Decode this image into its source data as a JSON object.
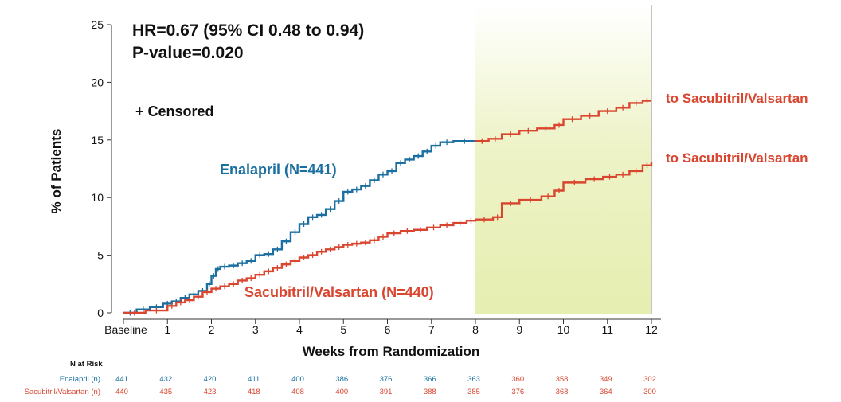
{
  "chart_data": {
    "type": "line",
    "subtype": "kaplan-meier",
    "ylabel": "% of Patients",
    "xlabel": "Weeks from Randomization",
    "ylim": [
      0,
      25
    ],
    "xlim": [
      0,
      12
    ],
    "yticks": [
      0,
      5,
      10,
      15,
      20,
      25
    ],
    "xticks": [
      {
        "value": 0,
        "label": "Baseline"
      },
      {
        "value": 1,
        "label": "1"
      },
      {
        "value": 2,
        "label": "2"
      },
      {
        "value": 3,
        "label": "3"
      },
      {
        "value": 4,
        "label": "4"
      },
      {
        "value": 5,
        "label": "5"
      },
      {
        "value": 6,
        "label": "6"
      },
      {
        "value": 7,
        "label": "7"
      },
      {
        "value": 8,
        "label": "8"
      },
      {
        "value": 9,
        "label": "9"
      },
      {
        "value": 10,
        "label": "10"
      },
      {
        "value": 11,
        "label": "11"
      },
      {
        "value": 12,
        "label": "12"
      }
    ],
    "grid": false,
    "highlight_region": {
      "x": [
        8,
        12
      ],
      "color": "#e6eeb0"
    },
    "annotations": {
      "hr": "HR=0.67 (95% CI 0.48 to 0.94)",
      "p": "P-value=0.020",
      "censored": "+ Censored",
      "upper_end_label": "to Sacubitril/Valsartan",
      "lower_end_label": "to Sacubitril/Valsartan"
    },
    "series": [
      {
        "name": "Enalapril (N=441)",
        "color": "#1a6fa0",
        "x": [
          0,
          0.3,
          0.6,
          0.9,
          1.1,
          1.3,
          1.5,
          1.7,
          1.9,
          2.0,
          2.1,
          2.2,
          2.4,
          2.6,
          2.8,
          3.0,
          3.2,
          3.4,
          3.6,
          3.8,
          4.0,
          4.2,
          4.4,
          4.6,
          4.8,
          5.0,
          5.2,
          5.4,
          5.6,
          5.8,
          6.0,
          6.2,
          6.4,
          6.6,
          6.8,
          7.0,
          7.2,
          7.5,
          8.0
        ],
        "y": [
          0,
          0.3,
          0.5,
          0.8,
          1.0,
          1.3,
          1.6,
          1.9,
          2.5,
          3.2,
          3.8,
          4.0,
          4.1,
          4.3,
          4.5,
          5.0,
          5.1,
          5.5,
          6.2,
          7.0,
          7.7,
          8.3,
          8.5,
          9.0,
          9.7,
          10.5,
          10.7,
          11.0,
          11.5,
          12.0,
          12.3,
          13.0,
          13.3,
          13.6,
          14.0,
          14.5,
          14.8,
          14.9,
          14.9
        ]
      },
      {
        "name": "Sacubitril/Valsartan (N=440)",
        "color": "#d9452e",
        "x": [
          0,
          0.5,
          1.0,
          1.2,
          1.4,
          1.6,
          1.8,
          2.0,
          2.2,
          2.4,
          2.6,
          2.8,
          3.0,
          3.2,
          3.4,
          3.6,
          3.8,
          4.0,
          4.2,
          4.4,
          4.6,
          4.8,
          5.0,
          5.2,
          5.4,
          5.6,
          5.8,
          6.0,
          6.3,
          6.6,
          6.9,
          7.2,
          7.5,
          7.8,
          8.0
        ],
        "y": [
          0,
          0.2,
          0.6,
          0.9,
          1.1,
          1.4,
          1.8,
          2.1,
          2.3,
          2.5,
          2.8,
          3.0,
          3.3,
          3.6,
          3.9,
          4.2,
          4.5,
          4.8,
          5.0,
          5.3,
          5.5,
          5.7,
          5.9,
          6.0,
          6.1,
          6.3,
          6.6,
          6.9,
          7.1,
          7.2,
          7.4,
          7.6,
          7.8,
          8.0,
          8.1
        ]
      },
      {
        "name": "",
        "color": "#d9452e",
        "x": [
          8.0,
          8.3,
          8.6,
          9.0,
          9.4,
          9.8,
          10.0,
          10.4,
          10.8,
          11.2,
          11.5,
          11.8,
          12.0
        ],
        "y": [
          14.9,
          15.1,
          15.5,
          15.8,
          16.0,
          16.3,
          16.8,
          17.1,
          17.5,
          17.8,
          18.2,
          18.4,
          18.4
        ]
      },
      {
        "name": "",
        "color": "#d9452e",
        "x": [
          8.0,
          8.4,
          8.6,
          9.0,
          9.5,
          9.8,
          10.0,
          10.5,
          10.9,
          11.2,
          11.5,
          11.8,
          12.0
        ],
        "y": [
          8.1,
          8.3,
          9.5,
          9.8,
          10.1,
          10.6,
          11.3,
          11.6,
          11.8,
          12.0,
          12.3,
          12.8,
          13.1
        ]
      }
    ],
    "series_labels": {
      "enalapril": "Enalapril (N=441)",
      "sacubitril": "Sacubitril/Valsartan (N=440)"
    },
    "risk_table": {
      "title": "N at Risk",
      "rows": [
        {
          "label": "Enalapril (n)",
          "values": [
            "441",
            "432",
            "420",
            "411",
            "400",
            "386",
            "376",
            "366",
            "363",
            "360",
            "358",
            "349",
            "302"
          ]
        },
        {
          "label": "Sacubitril/Valsartan (n)",
          "values": [
            "440",
            "435",
            "423",
            "418",
            "408",
            "400",
            "391",
            "388",
            "385",
            "376",
            "368",
            "364",
            "300"
          ]
        }
      ]
    }
  }
}
